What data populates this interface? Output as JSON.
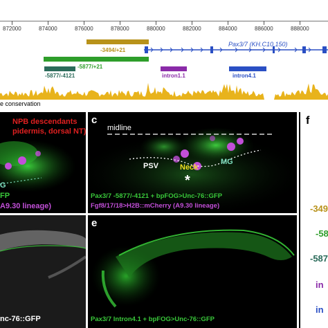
{
  "browser": {
    "coords": [
      "872000",
      "874000",
      "876000",
      "878000",
      "880000",
      "882000",
      "884000",
      "886000",
      "888000"
    ],
    "gene_label": "Pax3/7 (KH.C10.150)",
    "conservation_label": "e conservation",
    "tracks": [
      {
        "label": "-3494/+21",
        "color": "#b8921a"
      },
      {
        "label": "-5877/+21",
        "color": "#2e9e2a"
      },
      {
        "label": "-5877/-4121",
        "color": "#2b6b5a"
      },
      {
        "label": "intron1.1",
        "color": "#8a2aa8"
      },
      {
        "label": "intron4.1",
        "color": "#2a4fc4"
      }
    ]
  },
  "panel_b": {
    "title_line1": "NPB descendants",
    "title_line2": "pidermis, dorsal NT)",
    "label_g": "G",
    "caption_line1": "FP",
    "caption_line2": "A9.30 lineage)"
  },
  "panel_c": {
    "letter": "c",
    "midline": "midline",
    "psv": "PSV",
    "neck": "Neck",
    "mg": "MG",
    "asterisk": "*",
    "caption_line1": "Pax3/7 -5877/-4121 + bpFOG>Unc-76::GFP",
    "caption_line2": "Fgf8/17/18>H2B::mCherry (A9.30 lineage)"
  },
  "panel_d": {
    "caption": "nc-76::GFP"
  },
  "panel_e": {
    "letter": "e",
    "caption": "Pax3/7 Intron4.1 + bpFOG>Unc-76::GFP"
  },
  "panel_f": {
    "letter": "f",
    "items": [
      {
        "label": "-349",
        "color": "#b8921a"
      },
      {
        "label": "-58",
        "color": "#2e9e2a"
      },
      {
        "label": "-587",
        "color": "#2b6b5a"
      },
      {
        "label": "in",
        "color": "#8a2aa8"
      },
      {
        "label": "in",
        "color": "#2a4fc4"
      }
    ]
  },
  "colors": {
    "conservation": "#e8b31c",
    "gfp": "#39c83a",
    "mcherry": "#c24fd8",
    "red_title": "#e02020",
    "yellow": "#f0e020",
    "cyan": "#7fe0c0",
    "gene": "#2a4fc4"
  }
}
